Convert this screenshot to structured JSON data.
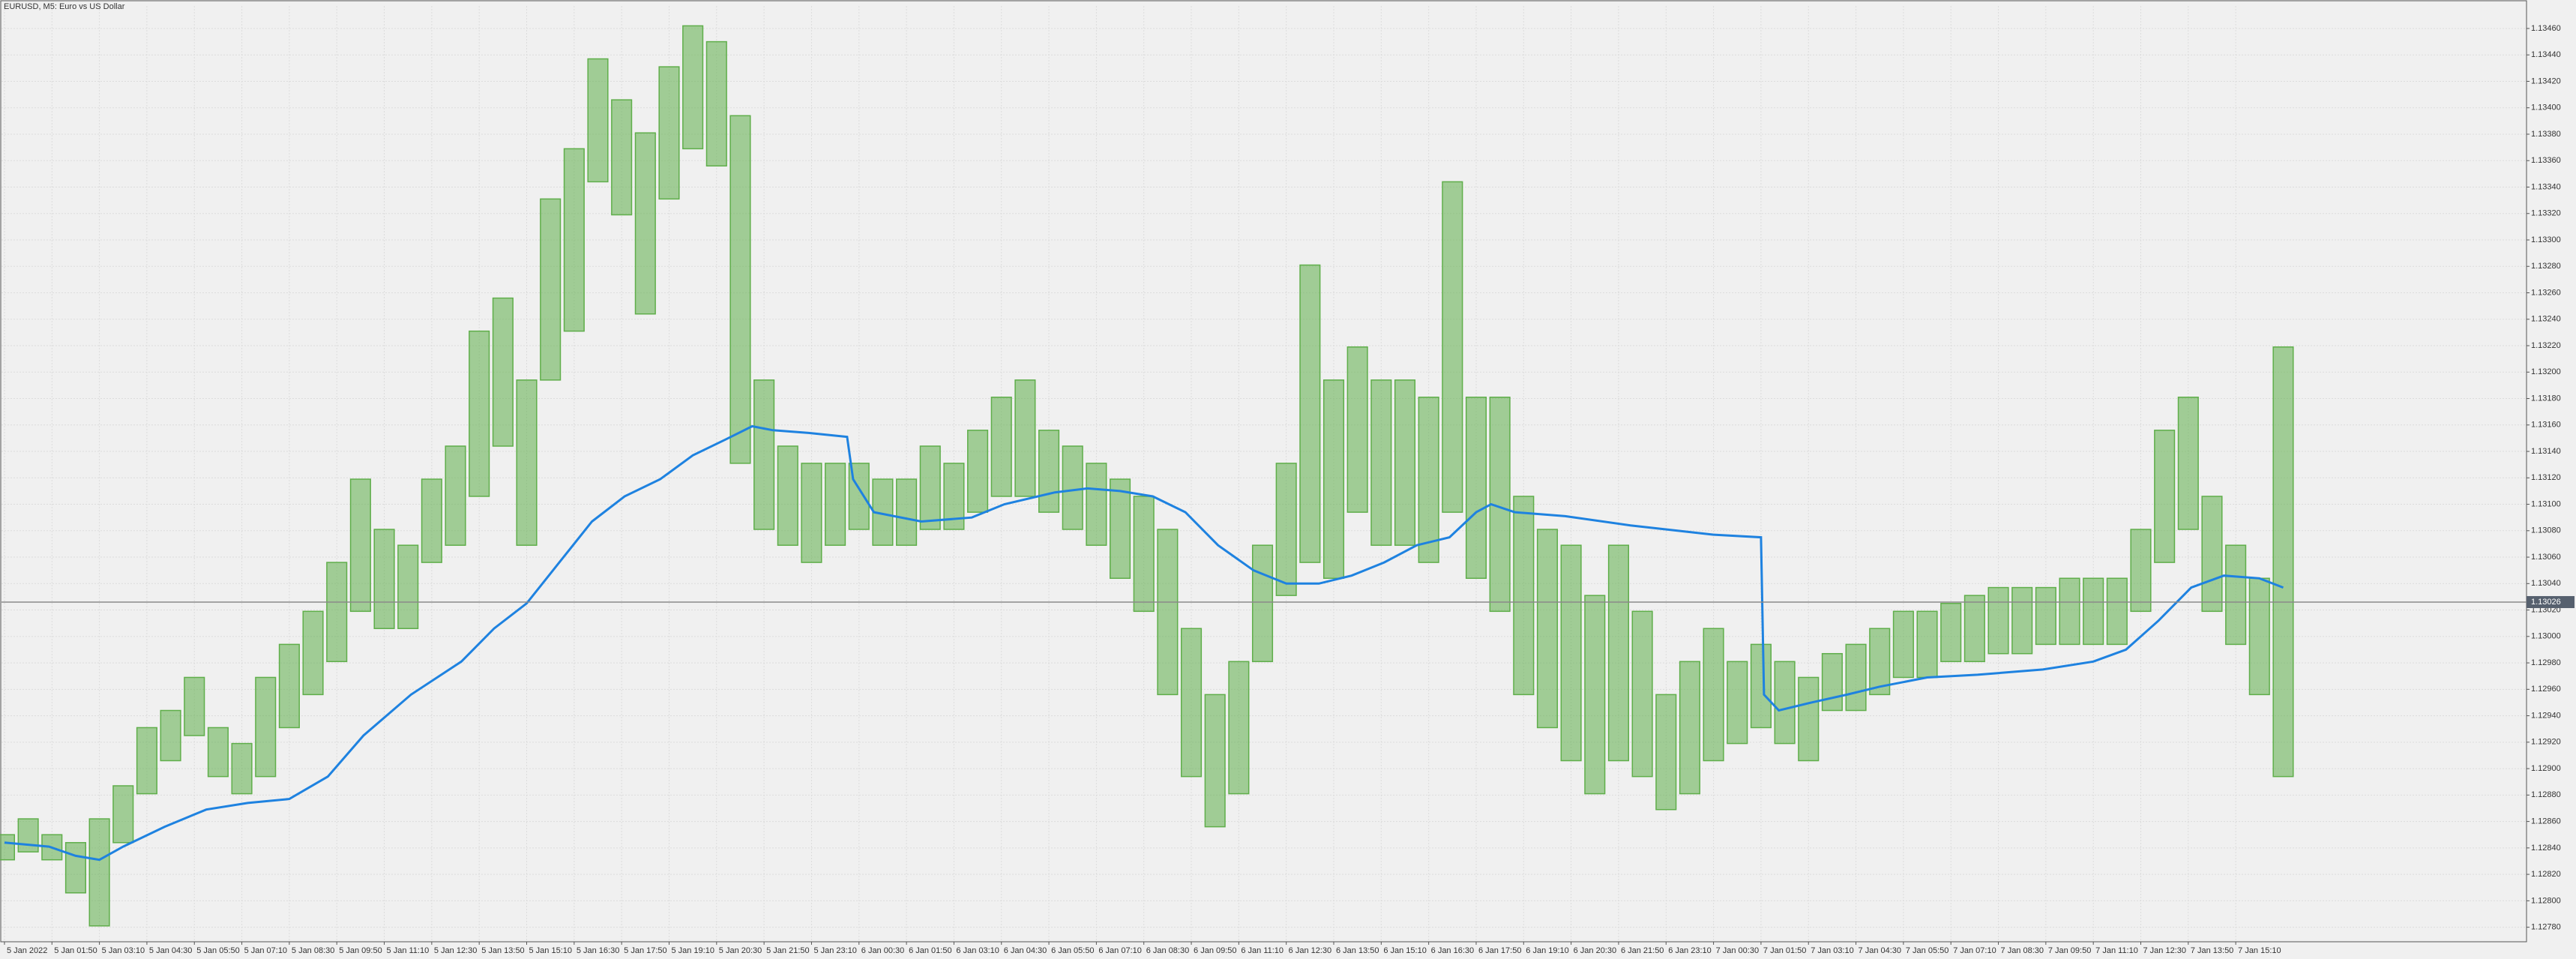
{
  "chart_data": {
    "type": "range",
    "title": "EURUSD, M5:  Euro vs US Dollar",
    "color": "#5fae4a",
    "x": [
      0,
      8,
      16,
      24,
      32,
      40,
      48,
      56,
      64,
      72,
      80,
      88,
      96,
      104,
      112,
      120,
      128,
      136,
      144,
      152,
      160,
      168,
      176,
      184,
      192,
      200,
      208,
      216,
      224,
      232,
      240,
      248,
      256,
      264,
      272,
      280,
      288,
      296,
      304,
      312,
      320,
      328,
      336,
      344,
      352,
      360,
      368,
      376,
      384,
      392,
      400,
      408,
      416,
      424,
      432,
      440,
      448,
      456,
      464,
      472,
      480,
      488,
      496,
      504,
      512,
      520,
      528,
      536,
      544,
      552,
      560,
      568,
      576,
      584,
      592,
      600,
      608,
      616,
      624,
      632,
      640,
      648,
      656,
      664,
      672,
      680,
      688,
      696,
      704,
      712,
      720,
      728,
      736,
      744,
      752,
      760,
      768
    ],
    "high": [
      1.1285,
      1.12862,
      1.1285,
      1.12844,
      1.12862,
      1.12887,
      1.12931,
      1.12944,
      1.12969,
      1.12931,
      1.12919,
      1.12969,
      1.12994,
      1.13019,
      1.13056,
      1.13119,
      1.13081,
      1.13069,
      1.13119,
      1.13144,
      1.13231,
      1.13256,
      1.13194,
      1.13331,
      1.13369,
      1.13437,
      1.13406,
      1.13381,
      1.13431,
      1.13462,
      1.1345,
      1.13394,
      1.13194,
      1.13144,
      1.13131,
      1.13131,
      1.13131,
      1.13119,
      1.13119,
      1.13144,
      1.13131,
      1.13156,
      1.13181,
      1.13194,
      1.13156,
      1.13144,
      1.13131,
      1.13119,
      1.13106,
      1.13081,
      1.13006,
      1.12956,
      1.12981,
      1.13069,
      1.13131,
      1.13281,
      1.13194,
      1.13219,
      1.13194,
      1.13194,
      1.13181,
      1.13344,
      1.13181,
      1.13181,
      1.13106,
      1.13081,
      1.13069,
      1.13031,
      1.13069,
      1.13019,
      1.12956,
      1.12981,
      1.13006,
      1.12981,
      1.12994,
      1.12981,
      1.12969,
      1.12987,
      1.12994,
      1.13006,
      1.13019,
      1.13019,
      1.13025,
      1.13031,
      1.13037,
      1.13037,
      1.13037,
      1.13044,
      1.13044,
      1.13044,
      1.13081,
      1.13156,
      1.13181,
      1.13106,
      1.13069,
      1.13044,
      1.13219
    ],
    "low": [
      1.12831,
      1.12837,
      1.12831,
      1.12806,
      1.12781,
      1.12844,
      1.12881,
      1.12906,
      1.12925,
      1.12894,
      1.12881,
      1.12894,
      1.12931,
      1.12956,
      1.12981,
      1.13019,
      1.13006,
      1.13006,
      1.13056,
      1.13069,
      1.13106,
      1.13144,
      1.13069,
      1.13194,
      1.13231,
      1.13344,
      1.13319,
      1.13244,
      1.13331,
      1.13369,
      1.13356,
      1.13131,
      1.13081,
      1.13069,
      1.13056,
      1.13069,
      1.13081,
      1.13069,
      1.13069,
      1.13081,
      1.13081,
      1.13094,
      1.13106,
      1.13106,
      1.13094,
      1.13081,
      1.13069,
      1.13044,
      1.13019,
      1.12956,
      1.12894,
      1.12856,
      1.12881,
      1.12981,
      1.13031,
      1.13056,
      1.13044,
      1.13094,
      1.13069,
      1.13069,
      1.13056,
      1.13094,
      1.13044,
      1.13019,
      1.12956,
      1.12931,
      1.12906,
      1.12881,
      1.12906,
      1.12894,
      1.12869,
      1.12881,
      1.12906,
      1.12919,
      1.12931,
      1.12919,
      1.12906,
      1.12944,
      1.12944,
      1.12956,
      1.12969,
      1.12969,
      1.12981,
      1.12981,
      1.12987,
      1.12987,
      1.12994,
      1.12994,
      1.12994,
      1.12994,
      1.13019,
      1.13056,
      1.13081,
      1.13019,
      1.12994,
      1.12956,
      1.12894
    ],
    "ma": {
      "color": "#1e82e0",
      "x": [
        0,
        15,
        24,
        32,
        40,
        54,
        68,
        82,
        96,
        109,
        121,
        137,
        154,
        165,
        176,
        187,
        198,
        209,
        221,
        232,
        243,
        252,
        259,
        271,
        284,
        286,
        293,
        309,
        326,
        337,
        354,
        365,
        376,
        387,
        398,
        409,
        421,
        432,
        443,
        454,
        465,
        476,
        487,
        496,
        501,
        509,
        526,
        548,
        576,
        592,
        593,
        598,
        609,
        621,
        632,
        648,
        665,
        687,
        704,
        715,
        726,
        737,
        748,
        760,
        768
      ],
      "values": [
        1.12844,
        1.12841,
        1.12834,
        1.12831,
        1.12841,
        1.12856,
        1.12869,
        1.12874,
        1.12877,
        1.12894,
        1.12925,
        1.12956,
        1.12981,
        1.13006,
        1.13025,
        1.13056,
        1.13087,
        1.13106,
        1.13119,
        1.13137,
        1.13149,
        1.13159,
        1.13156,
        1.13154,
        1.13151,
        1.13119,
        1.13094,
        1.13087,
        1.1309,
        1.131,
        1.13109,
        1.13112,
        1.1311,
        1.13106,
        1.13094,
        1.13069,
        1.1305,
        1.1304,
        1.1304,
        1.13046,
        1.13056,
        1.13069,
        1.13075,
        1.13094,
        1.131,
        1.13094,
        1.13091,
        1.13084,
        1.13077,
        1.13075,
        1.12956,
        1.12944,
        1.1295,
        1.12956,
        1.12962,
        1.12969,
        1.12971,
        1.12975,
        1.12981,
        1.1299,
        1.13012,
        1.13037,
        1.13046,
        1.13044,
        1.13037
      ]
    },
    "current_price": {
      "value": 1.13026,
      "label": "1.13026"
    },
    "xlim": [
      -1,
      850
    ],
    "ylim": [
      1.12769,
      1.13477
    ],
    "grid": true,
    "xticks": [
      {
        "value": 0,
        "label": "5 Jan 2022"
      },
      {
        "value": 16,
        "label": "5 Jan 01:50"
      },
      {
        "value": 32,
        "label": "5 Jan 03:10"
      },
      {
        "value": 48,
        "label": "5 Jan 04:30"
      },
      {
        "value": 64,
        "label": "5 Jan 05:50"
      },
      {
        "value": 80,
        "label": "5 Jan 07:10"
      },
      {
        "value": 96,
        "label": "5 Jan 08:30"
      },
      {
        "value": 112,
        "label": "5 Jan 09:50"
      },
      {
        "value": 128,
        "label": "5 Jan 11:10"
      },
      {
        "value": 144,
        "label": "5 Jan 12:30"
      },
      {
        "value": 160,
        "label": "5 Jan 13:50"
      },
      {
        "value": 176,
        "label": "5 Jan 15:10"
      },
      {
        "value": 192,
        "label": "5 Jan 16:30"
      },
      {
        "value": 208,
        "label": "5 Jan 17:50"
      },
      {
        "value": 224,
        "label": "5 Jan 19:10"
      },
      {
        "value": 240,
        "label": "5 Jan 20:30"
      },
      {
        "value": 256,
        "label": "5 Jan 21:50"
      },
      {
        "value": 272,
        "label": "5 Jan 23:10"
      },
      {
        "value": 288,
        "label": "6 Jan 00:30"
      },
      {
        "value": 304,
        "label": "6 Jan 01:50"
      },
      {
        "value": 320,
        "label": "6 Jan 03:10"
      },
      {
        "value": 336,
        "label": "6 Jan 04:30"
      },
      {
        "value": 352,
        "label": "6 Jan 05:50"
      },
      {
        "value": 368,
        "label": "6 Jan 07:10"
      },
      {
        "value": 384,
        "label": "6 Jan 08:30"
      },
      {
        "value": 400,
        "label": "6 Jan 09:50"
      },
      {
        "value": 416,
        "label": "6 Jan 11:10"
      },
      {
        "value": 432,
        "label": "6 Jan 12:30"
      },
      {
        "value": 448,
        "label": "6 Jan 13:50"
      },
      {
        "value": 464,
        "label": "6 Jan 15:10"
      },
      {
        "value": 480,
        "label": "6 Jan 16:30"
      },
      {
        "value": 496,
        "label": "6 Jan 17:50"
      },
      {
        "value": 512,
        "label": "6 Jan 19:10"
      },
      {
        "value": 528,
        "label": "6 Jan 20:30"
      },
      {
        "value": 544,
        "label": "6 Jan 21:50"
      },
      {
        "value": 560,
        "label": "6 Jan 23:10"
      },
      {
        "value": 576,
        "label": "7 Jan 00:30"
      },
      {
        "value": 592,
        "label": "7 Jan 01:50"
      },
      {
        "value": 608,
        "label": "7 Jan 03:10"
      },
      {
        "value": 624,
        "label": "7 Jan 04:30"
      },
      {
        "value": 640,
        "label": "7 Jan 05:50"
      },
      {
        "value": 656,
        "label": "7 Jan 07:10"
      },
      {
        "value": 672,
        "label": "7 Jan 08:30"
      },
      {
        "value": 688,
        "label": "7 Jan 09:50"
      },
      {
        "value": 704,
        "label": "7 Jan 11:10"
      },
      {
        "value": 720,
        "label": "7 Jan 12:30"
      },
      {
        "value": 736,
        "label": "7 Jan 13:50"
      },
      {
        "value": 752,
        "label": "7 Jan 15:10"
      }
    ],
    "yticks": [
      {
        "value": 1.1278,
        "label": "1.12780"
      },
      {
        "value": 1.128,
        "label": "1.12800"
      },
      {
        "value": 1.1282,
        "label": "1.12820"
      },
      {
        "value": 1.1284,
        "label": "1.12840"
      },
      {
        "value": 1.1286,
        "label": "1.12860"
      },
      {
        "value": 1.1288,
        "label": "1.12880"
      },
      {
        "value": 1.129,
        "label": "1.12900"
      },
      {
        "value": 1.1292,
        "label": "1.12920"
      },
      {
        "value": 1.1294,
        "label": "1.12940"
      },
      {
        "value": 1.1296,
        "label": "1.12960"
      },
      {
        "value": 1.1298,
        "label": "1.12980"
      },
      {
        "value": 1.13,
        "label": "1.13000"
      },
      {
        "value": 1.1302,
        "label": "1.13020"
      },
      {
        "value": 1.1304,
        "label": "1.13040"
      },
      {
        "value": 1.1306,
        "label": "1.13060"
      },
      {
        "value": 1.1308,
        "label": "1.13080"
      },
      {
        "value": 1.131,
        "label": "1.13100"
      },
      {
        "value": 1.1312,
        "label": "1.13120"
      },
      {
        "value": 1.1314,
        "label": "1.13140"
      },
      {
        "value": 1.1316,
        "label": "1.13160"
      },
      {
        "value": 1.1318,
        "label": "1.13180"
      },
      {
        "value": 1.132,
        "label": "1.13200"
      },
      {
        "value": 1.1322,
        "label": "1.13220"
      },
      {
        "value": 1.1324,
        "label": "1.13240"
      },
      {
        "value": 1.1326,
        "label": "1.13260"
      },
      {
        "value": 1.1328,
        "label": "1.13280"
      },
      {
        "value": 1.133,
        "label": "1.13300"
      },
      {
        "value": 1.1332,
        "label": "1.13320"
      },
      {
        "value": 1.1334,
        "label": "1.13340"
      },
      {
        "value": 1.1336,
        "label": "1.13360"
      },
      {
        "value": 1.1338,
        "label": "1.13380"
      },
      {
        "value": 1.134,
        "label": "1.13400"
      },
      {
        "value": 1.1342,
        "label": "1.13420"
      },
      {
        "value": 1.1344,
        "label": "1.13440"
      },
      {
        "value": 1.1346,
        "label": "1.13460"
      }
    ]
  }
}
